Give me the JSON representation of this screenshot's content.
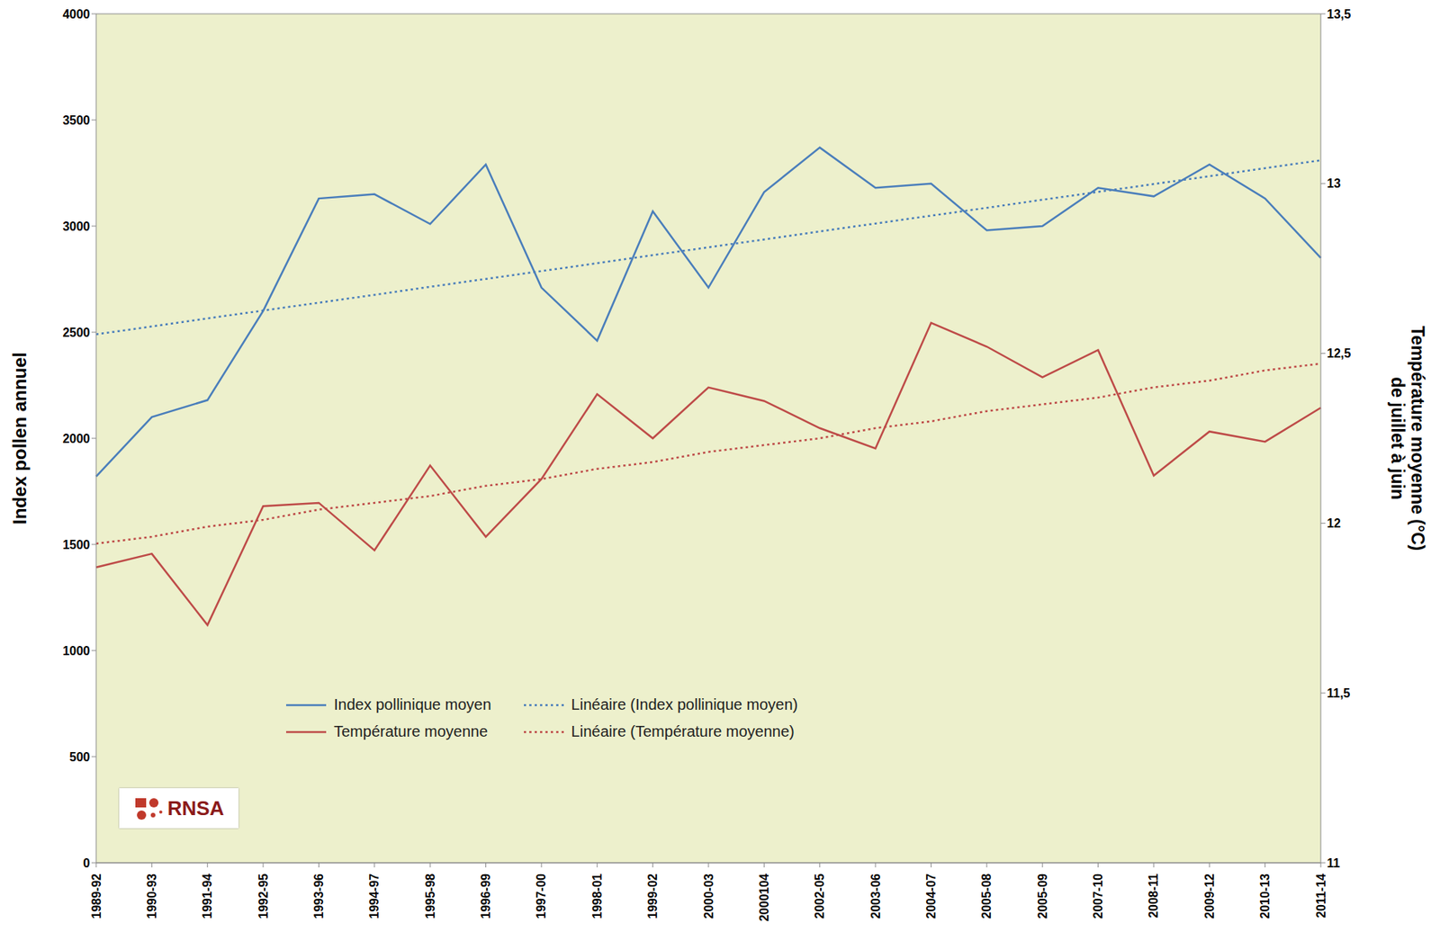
{
  "chart_data": {
    "type": "line",
    "ylabel": "Index pollen annuel",
    "y2label": [
      "Température moyenne (°C)",
      "de juillet à juin"
    ],
    "annotations": [
      "RNSA"
    ],
    "categories": [
      "1989-92",
      "1990-93",
      "1991-94",
      "1992-95",
      "1993-96",
      "1994-97",
      "1995-98",
      "1996-99",
      "1997-00",
      "1998-01",
      "1999-02",
      "2000-03",
      "2000104",
      "2002-05",
      "2003-06",
      "2004-07",
      "2005-08",
      "2005-09",
      "2007-10",
      "2008-11",
      "2009-12",
      "2010-13",
      "2011-14"
    ],
    "ylim": [
      0,
      4000
    ],
    "yticks": [
      0,
      500,
      1000,
      1500,
      2000,
      2500,
      3000,
      3500,
      4000
    ],
    "y2lim": [
      11,
      13.5
    ],
    "y2ticks": [
      11,
      {
        "value": 11.5,
        "label": "11,5"
      },
      12,
      {
        "value": 12.5,
        "label": "12,5"
      },
      13,
      {
        "value": 13.5,
        "label": "13,5"
      }
    ],
    "grid": true,
    "legend": "lower left",
    "series": [
      {
        "name": "Index pollinique moyen",
        "color": "#4a7ebb",
        "line_style": "solid",
        "marker": "none",
        "values": [
          1820,
          2100,
          2180,
          2600,
          3130,
          3150,
          3010,
          3290,
          2710,
          2460,
          3070,
          2710,
          3160,
          3370,
          3180,
          3200,
          2980,
          3000,
          3180,
          3140,
          3290,
          3130,
          2850
        ]
      },
      {
        "name": "Température moyenne",
        "color": "#be4b48",
        "line_style": "solid",
        "marker": "none",
        "axis": "y2",
        "values": [
          11.87,
          11.91,
          11.7,
          12.05,
          12.06,
          11.92,
          12.17,
          11.96,
          12.13,
          12.38,
          12.25,
          12.4,
          12.36,
          12.28,
          12.22,
          12.59,
          12.52,
          12.43,
          12.51,
          12.14,
          12.27,
          12.24,
          12.34
        ]
      },
      {
        "name": "Linéaire (Index pollinique moyen)",
        "color": "#4a7ebb",
        "line_style": "dotted",
        "marker": "none",
        "values": [
          2490,
          2527,
          2565,
          2602,
          2639,
          2676,
          2714,
          2751,
          2788,
          2825,
          2863,
          2900,
          2937,
          2975,
          3012,
          3049,
          3086,
          3124,
          3161,
          3198,
          3235,
          3273,
          3310
        ]
      },
      {
        "name": "Linéaire (Température moyenne)",
        "color": "#be4b48",
        "line_style": "dotted",
        "marker": "none",
        "axis": "y2",
        "values": [
          11.94,
          11.96,
          11.99,
          12.01,
          12.04,
          12.06,
          12.08,
          12.11,
          12.13,
          12.16,
          12.18,
          12.21,
          12.23,
          12.25,
          12.28,
          12.3,
          12.33,
          12.35,
          12.37,
          12.4,
          12.42,
          12.45,
          12.47
        ]
      }
    ]
  }
}
